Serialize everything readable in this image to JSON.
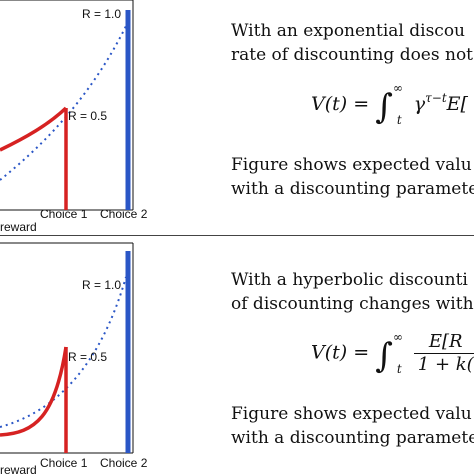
{
  "panels": [
    {
      "text_line1": "With an exponential discou",
      "text_line2": "rate of discounting does not",
      "eq_lhs": "V(t) =",
      "eq_upper": "∞",
      "eq_lower": "t",
      "eq_body": "γ",
      "eq_exp": "τ−t",
      "eq_tail": "E[",
      "desc_line1": "Figure shows expected valu",
      "desc_line2": "with a discounting paramete",
      "plot": {
        "label_r1": "R = 1.0",
        "label_r05": "R = 0.5",
        "tick_choice1": "Choice 1",
        "tick_choice2": "Choice 2",
        "xlabel": "reward"
      }
    },
    {
      "text_line1": "With a hyperbolic discounti",
      "text_line2": "of discounting changes with",
      "eq_lhs": "V(t) =",
      "eq_upper": "∞",
      "eq_lower": "t",
      "eq_num": "E[R",
      "eq_den": "1 + k(",
      "desc_line1": "Figure shows expected valu",
      "desc_line2": "with a discounting paramete",
      "plot": {
        "label_r1": "R = 1.0",
        "label_r05": "R = 0.5",
        "tick_choice1": "Choice 1",
        "tick_choice2": "Choice 2",
        "xlabel": "reward"
      }
    }
  ],
  "colors": {
    "choice1": "#d62222",
    "choice2": "#2a56c6",
    "dotted": "#2a56c6"
  }
}
